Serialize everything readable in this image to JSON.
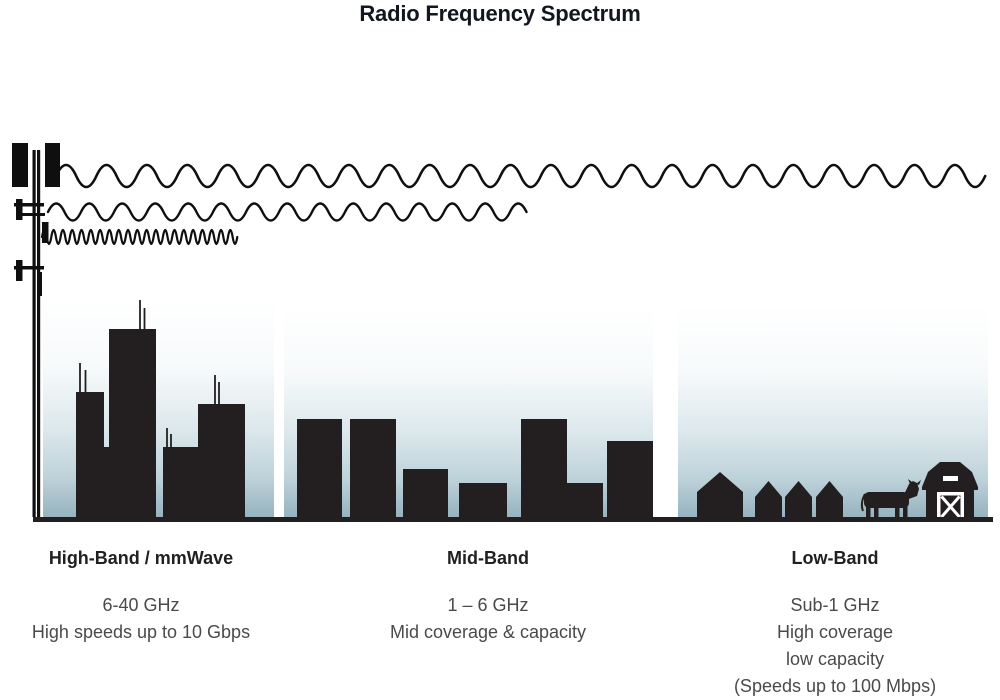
{
  "title": "Radio Frequency Spectrum",
  "bands": [
    {
      "name": "High-Band / mmWave",
      "details": [
        "6-40 GHz",
        "High speeds up to 10 Gbps"
      ],
      "scene_icon": "city-skyscrapers",
      "wave": "short-wavelength"
    },
    {
      "name": "Mid-Band",
      "details": [
        "1 – 6 GHz",
        "Mid coverage & capacity"
      ],
      "scene_icon": "mid-rise-buildings",
      "wave": "medium-wavelength"
    },
    {
      "name": "Low-Band",
      "details": [
        "Sub-1 GHz",
        "High coverage",
        "low capacity",
        "(Speeds up to 100 Mbps)"
      ],
      "scene_icon": "rural-houses-barn-cow",
      "wave": "long-wavelength"
    }
  ],
  "icons": {
    "tower": "cell-tower-icon",
    "waves": [
      "wave-long-icon",
      "wave-medium-icon",
      "wave-short-icon"
    ],
    "high_band": "city-skyline-icon",
    "mid_band": "mid-rise-buildings-icon",
    "low_band": [
      "house-icon",
      "cow-icon",
      "barn-icon"
    ],
    "ground": "ground-line"
  },
  "colors": {
    "ink": "#231f20",
    "stroke_black": "#0f0f0f",
    "title_text": "#12161f",
    "secondary_text": "#4a4a4c",
    "sky_top": "#ffffff",
    "sky_bottom": "#96b3bf"
  }
}
